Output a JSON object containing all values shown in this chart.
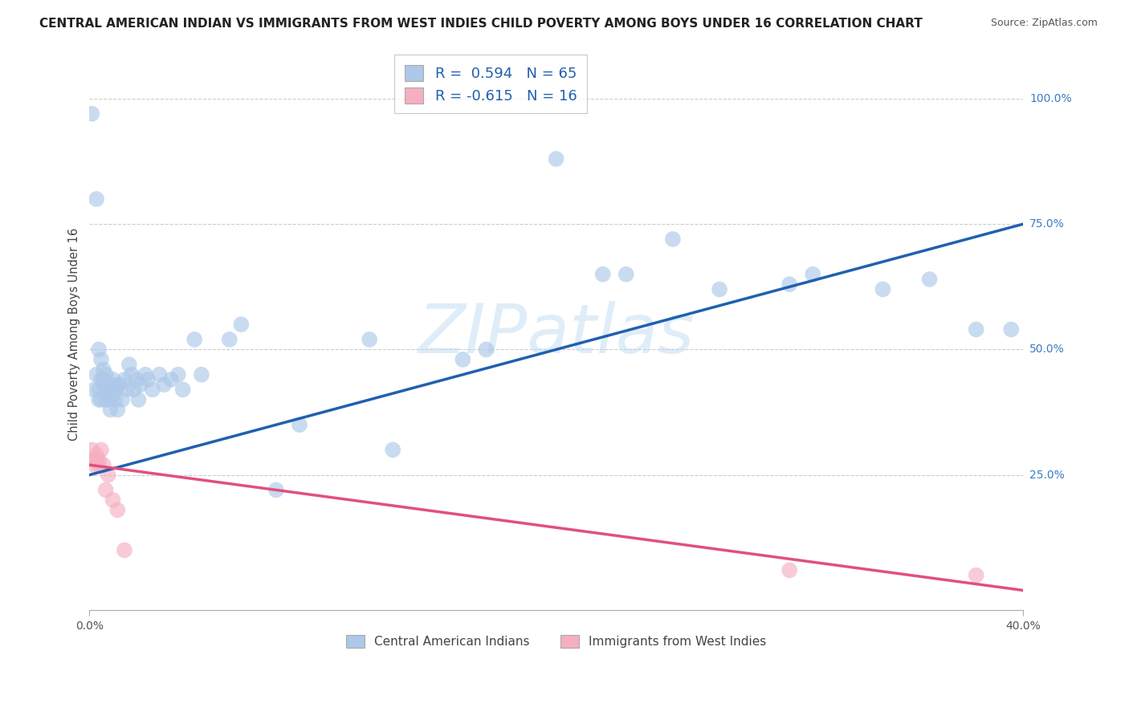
{
  "title": "CENTRAL AMERICAN INDIAN VS IMMIGRANTS FROM WEST INDIES CHILD POVERTY AMONG BOYS UNDER 16 CORRELATION CHART",
  "source": "Source: ZipAtlas.com",
  "ylabel": "Child Poverty Among Boys Under 16",
  "xlim": [
    0.0,
    0.4
  ],
  "ylim": [
    -0.02,
    1.08
  ],
  "blue_R": 0.594,
  "blue_N": 65,
  "pink_R": -0.615,
  "pink_N": 16,
  "blue_color": "#adc8e8",
  "pink_color": "#f5afc0",
  "blue_line_color": "#2060b0",
  "pink_line_color": "#e05080",
  "watermark": "ZIPatlas",
  "legend_label_blue": "Central American Indians",
  "legend_label_pink": "Immigrants from West Indies",
  "blue_line_x0": 0.0,
  "blue_line_y0": 0.25,
  "blue_line_x1": 0.4,
  "blue_line_y1": 0.75,
  "pink_line_x0": 0.0,
  "pink_line_y0": 0.27,
  "pink_line_x1": 0.4,
  "pink_line_y1": 0.02,
  "blue_points": [
    [
      0.001,
      0.97
    ],
    [
      0.003,
      0.8
    ],
    [
      0.002,
      0.42
    ],
    [
      0.003,
      0.45
    ],
    [
      0.004,
      0.42
    ],
    [
      0.004,
      0.4
    ],
    [
      0.004,
      0.5
    ],
    [
      0.005,
      0.48
    ],
    [
      0.005,
      0.44
    ],
    [
      0.005,
      0.4
    ],
    [
      0.006,
      0.46
    ],
    [
      0.006,
      0.44
    ],
    [
      0.006,
      0.43
    ],
    [
      0.007,
      0.42
    ],
    [
      0.007,
      0.4
    ],
    [
      0.007,
      0.45
    ],
    [
      0.008,
      0.4
    ],
    [
      0.008,
      0.42
    ],
    [
      0.009,
      0.38
    ],
    [
      0.009,
      0.43
    ],
    [
      0.01,
      0.44
    ],
    [
      0.01,
      0.41
    ],
    [
      0.011,
      0.42
    ],
    [
      0.011,
      0.4
    ],
    [
      0.012,
      0.43
    ],
    [
      0.012,
      0.38
    ],
    [
      0.013,
      0.43
    ],
    [
      0.014,
      0.4
    ],
    [
      0.015,
      0.44
    ],
    [
      0.016,
      0.42
    ],
    [
      0.017,
      0.47
    ],
    [
      0.018,
      0.45
    ],
    [
      0.019,
      0.42
    ],
    [
      0.02,
      0.44
    ],
    [
      0.021,
      0.4
    ],
    [
      0.022,
      0.43
    ],
    [
      0.024,
      0.45
    ],
    [
      0.025,
      0.44
    ],
    [
      0.027,
      0.42
    ],
    [
      0.03,
      0.45
    ],
    [
      0.032,
      0.43
    ],
    [
      0.035,
      0.44
    ],
    [
      0.038,
      0.45
    ],
    [
      0.04,
      0.42
    ],
    [
      0.045,
      0.52
    ],
    [
      0.048,
      0.45
    ],
    [
      0.06,
      0.52
    ],
    [
      0.065,
      0.55
    ],
    [
      0.08,
      0.22
    ],
    [
      0.09,
      0.35
    ],
    [
      0.12,
      0.52
    ],
    [
      0.13,
      0.3
    ],
    [
      0.16,
      0.48
    ],
    [
      0.17,
      0.5
    ],
    [
      0.22,
      0.65
    ],
    [
      0.23,
      0.65
    ],
    [
      0.25,
      0.72
    ],
    [
      0.27,
      0.62
    ],
    [
      0.3,
      0.63
    ],
    [
      0.31,
      0.65
    ],
    [
      0.34,
      0.62
    ],
    [
      0.36,
      0.64
    ],
    [
      0.38,
      0.54
    ],
    [
      0.395,
      0.54
    ],
    [
      0.2,
      0.88
    ]
  ],
  "pink_points": [
    [
      0.001,
      0.3
    ],
    [
      0.001,
      0.28
    ],
    [
      0.002,
      0.27
    ],
    [
      0.003,
      0.29
    ],
    [
      0.003,
      0.28
    ],
    [
      0.004,
      0.27
    ],
    [
      0.004,
      0.28
    ],
    [
      0.005,
      0.3
    ],
    [
      0.006,
      0.27
    ],
    [
      0.007,
      0.22
    ],
    [
      0.008,
      0.25
    ],
    [
      0.01,
      0.2
    ],
    [
      0.012,
      0.18
    ],
    [
      0.015,
      0.1
    ],
    [
      0.3,
      0.06
    ],
    [
      0.38,
      0.05
    ]
  ]
}
